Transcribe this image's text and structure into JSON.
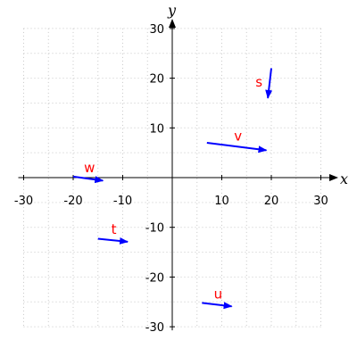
{
  "chart_data": {
    "type": "vector",
    "xlabel": "x",
    "ylabel": "y",
    "xlim": [
      -30,
      30
    ],
    "ylim": [
      -30,
      30
    ],
    "xticks": [
      -30,
      -20,
      -10,
      10,
      20,
      30
    ],
    "yticks": [
      -30,
      -20,
      -10,
      10,
      20,
      30
    ],
    "grid": true,
    "colors": {
      "vector": "#0000ff",
      "label": "#ff0000"
    },
    "vectors": [
      {
        "name": "s",
        "start": [
          20,
          22
        ],
        "end": [
          19.3,
          16
        ]
      },
      {
        "name": "v",
        "start": [
          7,
          7
        ],
        "end": [
          19,
          5.5
        ]
      },
      {
        "name": "w",
        "start": [
          -20,
          0.2
        ],
        "end": [
          -14,
          -0.6
        ]
      },
      {
        "name": "t",
        "start": [
          -15,
          -12.3
        ],
        "end": [
          -9,
          -12.9
        ]
      },
      {
        "name": "u",
        "start": [
          6,
          -25.2
        ],
        "end": [
          12,
          -25.9
        ]
      }
    ]
  }
}
